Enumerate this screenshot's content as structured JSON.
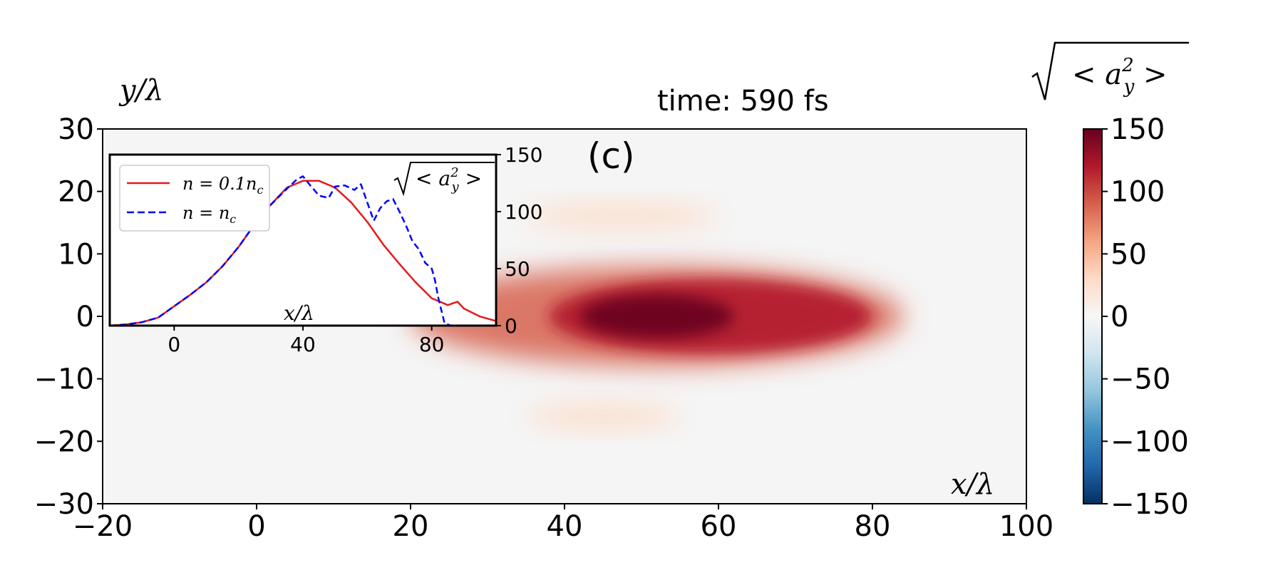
{
  "chart_data": [
    {
      "type": "heatmap",
      "panel_label": "(c)",
      "title": "time:  590 fs",
      "xlabel": "x/λ",
      "ylabel": "y/λ",
      "xlim": [
        -20,
        100
      ],
      "ylim": [
        -30,
        30
      ],
      "xticks": [
        "−20",
        "0",
        "20",
        "40",
        "60",
        "80",
        "100"
      ],
      "yticks": [
        "30",
        "20",
        "10",
        "0",
        "−10",
        "−20",
        "−30"
      ],
      "colorbar": {
        "label": "√< a_y² >",
        "label_base": "< a",
        "label_sub": "y",
        "label_sup": "2",
        "label_end": " >",
        "range": [
          -150,
          150
        ],
        "ticks": [
          "150",
          "100",
          "50",
          "0",
          "−50",
          "−100",
          "−150"
        ],
        "colormap": "RdBu_r"
      },
      "colors": {
        "background": "#f5f5f5",
        "max": "#67001f",
        "high": "#b2182b",
        "mid": "#d6604d",
        "low": "#fddbc7"
      },
      "field_blobs": [
        {
          "x0": 20,
          "x1": 84,
          "y": 0,
          "halfwidth": 8,
          "level": 0.55
        },
        {
          "x0": 38,
          "x1": 80,
          "y": 0,
          "halfwidth": 6,
          "level": 0.8
        },
        {
          "x0": 42,
          "x1": 62,
          "y": 0,
          "halfwidth": 3.5,
          "level": 1.0
        },
        {
          "x0": 35,
          "x1": 60,
          "y": 16,
          "halfwidth": 2,
          "level": 0.15
        },
        {
          "x0": 35,
          "x1": 55,
          "y": -16,
          "halfwidth": 2,
          "level": 0.15
        }
      ]
    },
    {
      "type": "line",
      "xlabel": "x/λ",
      "ylabel_right": "√< a_y² >",
      "ylabel_base": "< a",
      "ylabel_sub": "y",
      "ylabel_sup": "2",
      "ylabel_end": " >",
      "xlim": [
        -20,
        100
      ],
      "ylim": [
        0,
        150
      ],
      "xticks": [
        "0",
        "40",
        "80"
      ],
      "yticks": [
        "150",
        "100",
        "50",
        "0"
      ],
      "legend_position": "top-left",
      "series": [
        {
          "name": "n = 0.1n_c",
          "name_main": "n = 0.1n",
          "name_sub": "c",
          "color": "#e41a1c",
          "dash": "solid",
          "x": [
            -20,
            -15,
            -10,
            -5,
            0,
            5,
            10,
            15,
            20,
            25,
            30,
            35,
            40,
            45,
            50,
            55,
            60,
            65,
            70,
            75,
            80,
            85,
            88,
            90,
            95,
            100
          ],
          "y": [
            0,
            1,
            3,
            7,
            17,
            27,
            38,
            52,
            69,
            89,
            106,
            121,
            127,
            127,
            121,
            108,
            91,
            71,
            54,
            38,
            24,
            18,
            21,
            15,
            8,
            4
          ]
        },
        {
          "name": "n = n_c",
          "name_main": "n = n",
          "name_sub": "c",
          "color": "#0000ff",
          "dash": "dashed",
          "x": [
            -20,
            -15,
            -10,
            -5,
            0,
            5,
            10,
            15,
            20,
            25,
            30,
            35,
            38,
            40,
            42,
            45,
            48,
            50,
            53,
            56,
            58,
            60,
            62,
            64,
            66,
            68,
            70,
            72,
            74,
            76,
            78,
            80,
            81,
            82,
            84,
            86,
            90,
            95,
            100
          ],
          "y": [
            0,
            1,
            3,
            7,
            17,
            27,
            38,
            52,
            69,
            89,
            106,
            120,
            128,
            131,
            124,
            114,
            112,
            122,
            123,
            119,
            124,
            108,
            92,
            103,
            109,
            111,
            100,
            88,
            74,
            67,
            55,
            50,
            40,
            25,
            2,
            0,
            0,
            0,
            0
          ]
        }
      ]
    }
  ]
}
